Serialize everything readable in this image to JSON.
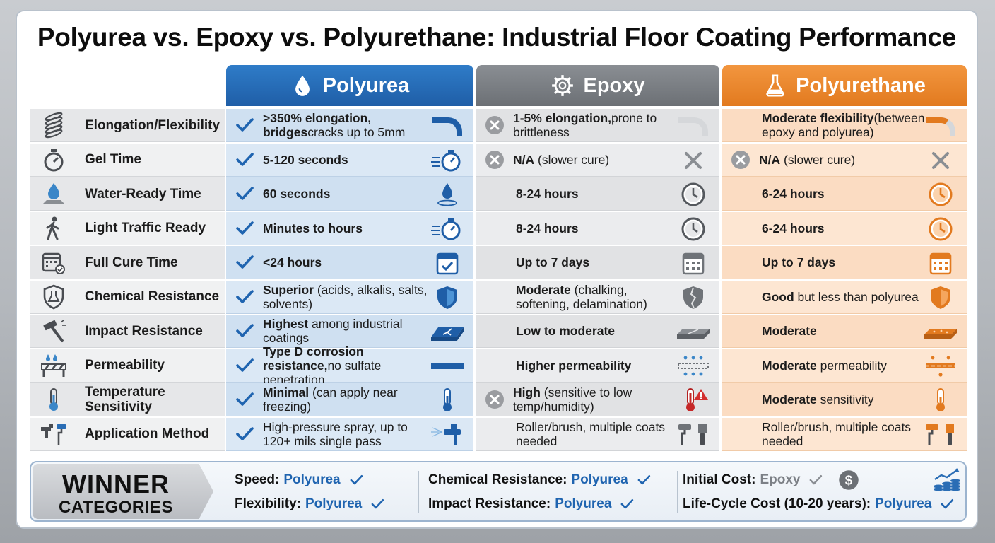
{
  "title": "Polyurea vs. Epoxy vs. Polyurethane: Industrial Floor Coating Performance",
  "columns": {
    "polyurea": "Polyurea",
    "epoxy": "Epoxy",
    "polyurethane": "Polyurethane"
  },
  "colors": {
    "polyurea": "#1f5ea7",
    "epoxy": "#6c7075",
    "polyurethane": "#e27a1f",
    "check": "#1f64b0",
    "cross": "#9a9ca0"
  },
  "rows": [
    {
      "label": "Elongation/Flexibility",
      "icon": "spring-icon",
      "polyurea": {
        "bold": ">350% elongation, bridges",
        "rest": "cracks up to 5mm",
        "mark": "check",
        "icon": "curve-blue-icon"
      },
      "epoxy": {
        "bold": "1-5% elongation,",
        "rest": "prone to brittleness",
        "mark": "cross",
        "icon": "curve-grey-icon"
      },
      "polyurethane": {
        "bold": "Moderate flexibility",
        "rest": "(between epoxy and polyurea)",
        "mark": "none",
        "icon": "curve-orange-icon"
      }
    },
    {
      "label": "Gel Time",
      "icon": "stopwatch-icon",
      "polyurea": {
        "bold": "5-120 seconds",
        "rest": "",
        "mark": "check",
        "icon": "stopwatch-fast-icon"
      },
      "epoxy": {
        "bold": "N/A",
        "rest": " (slower cure)",
        "mark": "cross",
        "icon": "x-grey-icon"
      },
      "polyurethane": {
        "bold": "N/A",
        "rest": " (slower cure)",
        "mark": "cross",
        "icon": "x-grey-icon"
      }
    },
    {
      "label": "Water-Ready Time",
      "icon": "water-drop-icon",
      "polyurea": {
        "bold": "60 seconds",
        "rest": "",
        "mark": "check",
        "icon": "droplet-icon"
      },
      "epoxy": {
        "bold": "8-24 hours",
        "rest": "",
        "mark": "none",
        "icon": "clock-grey-icon"
      },
      "polyurethane": {
        "bold": "6-24 hours",
        "rest": "",
        "mark": "none",
        "icon": "clock-orange-icon"
      }
    },
    {
      "label": "Light Traffic Ready",
      "icon": "walking-person-icon",
      "polyurea": {
        "bold": "Minutes to hours",
        "rest": "",
        "mark": "check",
        "icon": "stopwatch-fast-icon"
      },
      "epoxy": {
        "bold": "8-24 hours",
        "rest": "",
        "mark": "none",
        "icon": "clock-grey-icon"
      },
      "polyurethane": {
        "bold": "6-24 hours",
        "rest": "",
        "mark": "none",
        "icon": "clock-orange-icon"
      }
    },
    {
      "label": "Full Cure Time",
      "icon": "calendar-check-icon",
      "polyurea": {
        "bold": "<24 hours",
        "rest": "",
        "mark": "check",
        "icon": "calendar-blue-icon"
      },
      "epoxy": {
        "bold": "Up to 7 days",
        "rest": "",
        "mark": "none",
        "icon": "calendar-grey-icon"
      },
      "polyurethane": {
        "bold": "Up to 7 days",
        "rest": "",
        "mark": "none",
        "icon": "calendar-orange-icon"
      }
    },
    {
      "label": "Chemical Resistance",
      "icon": "shield-flask-icon",
      "polyurea": {
        "bold": "Superior",
        "rest": " (acids, alkalis, salts, solvents)",
        "mark": "check",
        "icon": "shield-blue-icon"
      },
      "epoxy": {
        "bold": "Moderate",
        "rest": " (chalking, softening, delamination)",
        "mark": "none",
        "icon": "shield-cracked-icon"
      },
      "polyurethane": {
        "bold": "Good",
        "rest": " but less than polyurea",
        "mark": "none",
        "icon": "shield-orange-icon"
      }
    },
    {
      "label": "Impact Resistance",
      "icon": "hammer-icon",
      "polyurea": {
        "bold": "Highest",
        "rest": " among industrial coatings",
        "mark": "check",
        "icon": "impact-blue-icon"
      },
      "epoxy": {
        "bold": "Low to moderate",
        "rest": "",
        "mark": "none",
        "icon": "impact-grey-icon"
      },
      "polyurethane": {
        "bold": "Moderate",
        "rest": "",
        "mark": "none",
        "icon": "impact-orange-icon"
      }
    },
    {
      "label": "Permeability",
      "icon": "barrier-drops-icon",
      "polyurea": {
        "bold": "Type D corrosion resistance,",
        "rest": "no sulfate penetration",
        "mark": "check",
        "icon": "solid-layer-icon"
      },
      "epoxy": {
        "bold": "Higher permeability",
        "rest": "",
        "mark": "none",
        "icon": "drops-through-grey-icon"
      },
      "polyurethane": {
        "bold": "Moderate",
        "rest": " permeability",
        "mark": "none",
        "icon": "drops-through-orange-icon"
      }
    },
    {
      "label": "Temperature Sensitivity",
      "icon": "thermometer-icon",
      "polyurea": {
        "bold": "Minimal",
        "rest": " (can apply near freezing)",
        "mark": "check",
        "icon": "thermometer-blue-icon"
      },
      "epoxy": {
        "bold": "High",
        "rest": " (sensitive to low temp/humidity)",
        "mark": "cross",
        "icon": "thermometer-warning-icon"
      },
      "polyurethane": {
        "bold": "Moderate",
        "rest": " sensitivity",
        "mark": "none",
        "icon": "thermometer-orange-icon"
      }
    },
    {
      "label": "Application Method",
      "icon": "spray-roller-icon",
      "polyurea": {
        "bold": "",
        "rest": "High-pressure spray, up to 120+ mils single pass",
        "mark": "check",
        "icon": "spray-gun-icon"
      },
      "epoxy": {
        "bold": "",
        "rest": "Roller/brush, multiple coats needed",
        "mark": "none",
        "icon": "roller-brush-grey-icon"
      },
      "polyurethane": {
        "bold": "",
        "rest": "Roller/brush, multiple coats needed",
        "mark": "none",
        "icon": "roller-brush-orange-icon"
      }
    }
  ],
  "winner": {
    "badge_line1": "WINNER",
    "badge_line2": "CATEGORIES",
    "items": [
      {
        "label": "Speed:",
        "value": "Polyurea",
        "mark": "check"
      },
      {
        "label": "Flexibility:",
        "value": "Polyurea",
        "mark": "check"
      },
      {
        "label": "Chemical Resistance:",
        "value": "Polyurea",
        "mark": "check"
      },
      {
        "label": "Impact Resistance:",
        "value": "Polyurea",
        "mark": "check"
      },
      {
        "label": "Initial Cost:",
        "value": "Epoxy",
        "mark": "check-grey"
      },
      {
        "label": "Life-Cycle Cost (10-20 years):",
        "value": "Polyurea",
        "mark": "check"
      }
    ]
  }
}
